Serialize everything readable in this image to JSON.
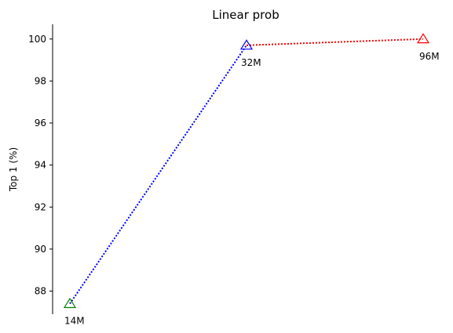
{
  "chart_data": {
    "type": "line",
    "title": "Linear prob",
    "xlabel": "",
    "ylabel": "Top 1 (%)",
    "ylim": [
      86.9,
      100.7
    ],
    "yticks": [
      88,
      90,
      92,
      94,
      96,
      98,
      100
    ],
    "grid": false,
    "legend": "none",
    "points": [
      {
        "label": "14M",
        "x": 0,
        "y": 87.4,
        "color": "#008000"
      },
      {
        "label": "32M",
        "x": 1,
        "y": 99.7,
        "color": "#0000ff"
      },
      {
        "label": "96M",
        "x": 2,
        "y": 100.0,
        "color": "#ff0000"
      }
    ],
    "segments": [
      {
        "from": 0,
        "to": 1,
        "color": "#0000ff",
        "style": "dotted"
      },
      {
        "from": 1,
        "to": 2,
        "color": "#ff0000",
        "style": "dotted"
      }
    ]
  }
}
